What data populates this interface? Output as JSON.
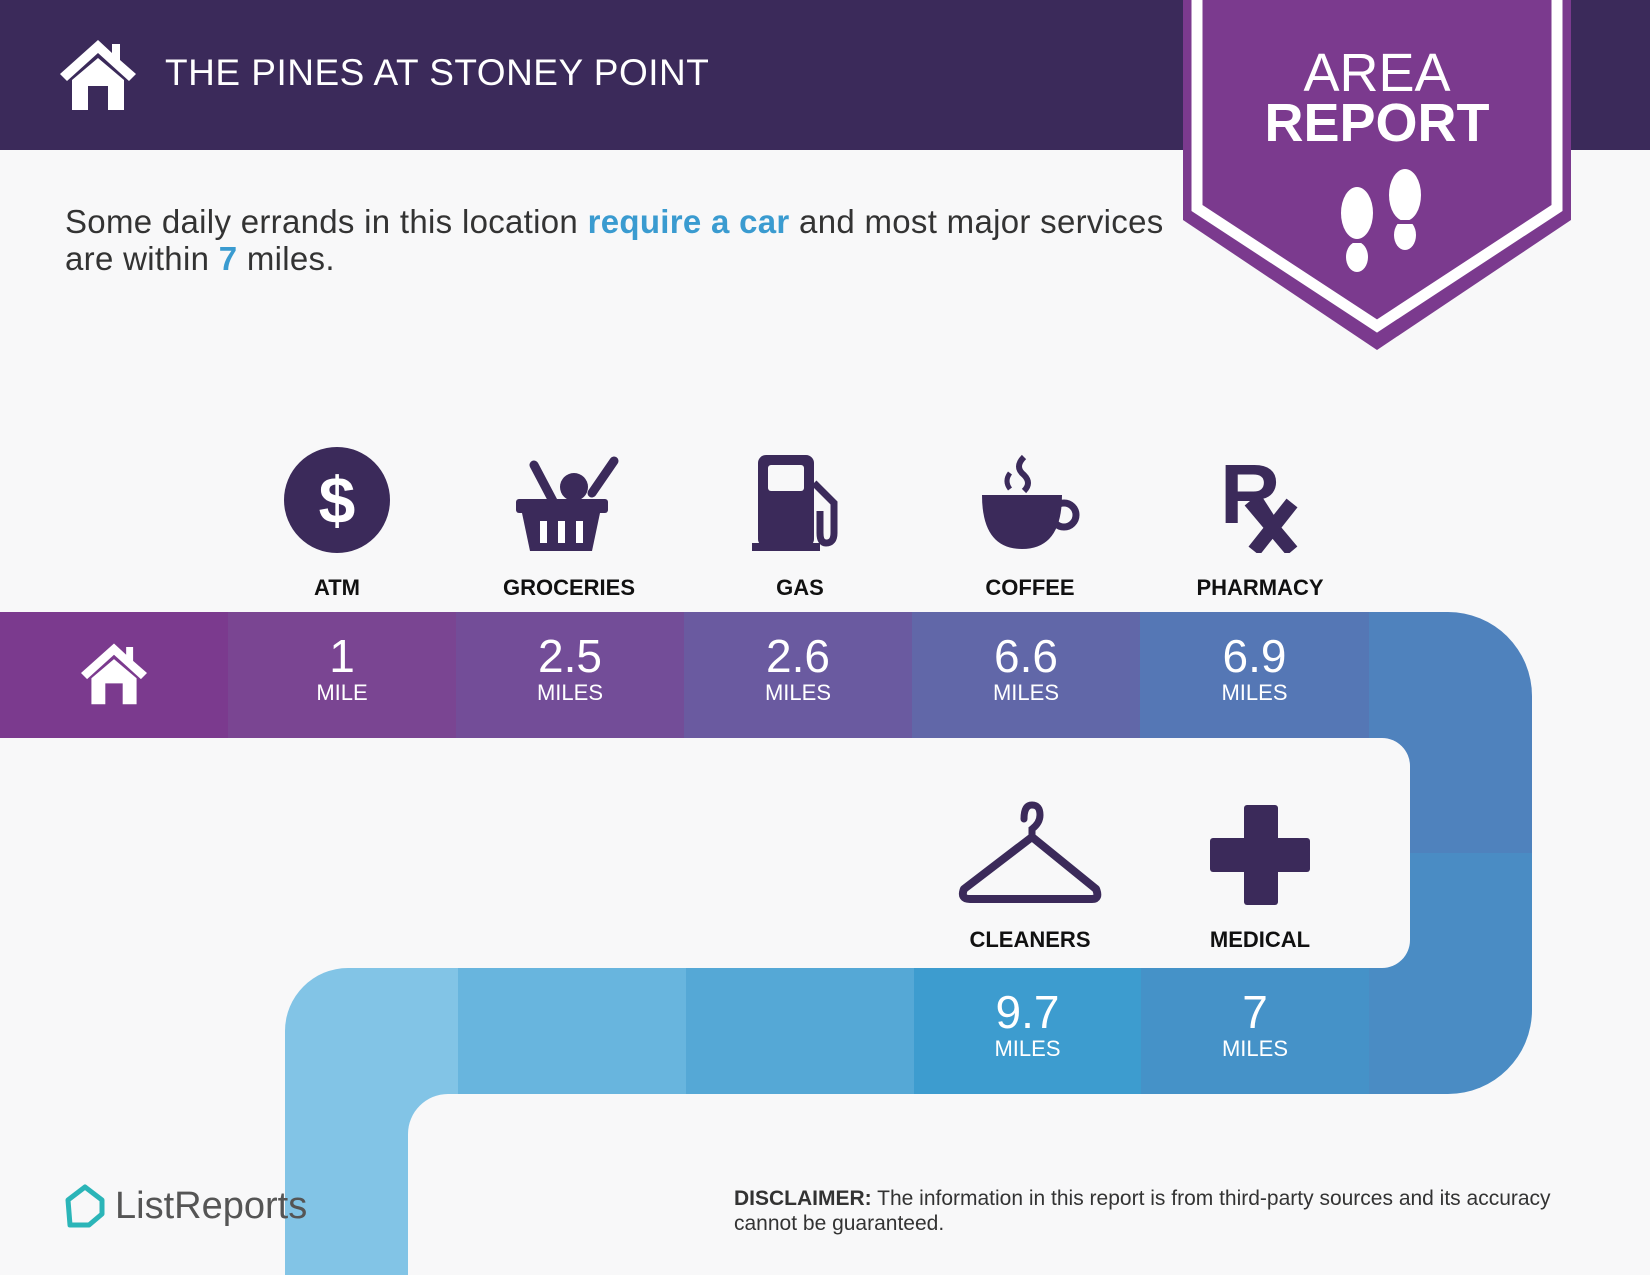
{
  "header": {
    "title": "THE PINES AT STONEY POINT",
    "home_icon": "house-icon"
  },
  "badge": {
    "line1": "AREA",
    "line2": "REPORT",
    "icon": "footprints-icon",
    "color": "#7b3a8e"
  },
  "intro": {
    "part1": "Some daily errands in this location ",
    "highlight1": "require a car",
    "part2": " and most major services are within ",
    "highlight2": "7",
    "part3": " miles.",
    "accent": "#3a9bd0"
  },
  "categories_top": [
    {
      "label": "ATM",
      "icon": "dollar-icon",
      "value": "1",
      "unit": "MILE"
    },
    {
      "label": "GROCERIES",
      "icon": "basket-icon",
      "value": "2.5",
      "unit": "MILES"
    },
    {
      "label": "GAS",
      "icon": "gas-pump-icon",
      "value": "2.6",
      "unit": "MILES"
    },
    {
      "label": "COFFEE",
      "icon": "coffee-cup-icon",
      "value": "6.6",
      "unit": "MILES"
    },
    {
      "label": "PHARMACY",
      "icon": "rx-icon",
      "value": "6.9",
      "unit": "MILES"
    }
  ],
  "categories_bottom": [
    {
      "label": "CLEANERS",
      "icon": "hanger-icon",
      "value": "9.7",
      "unit": "MILES"
    },
    {
      "label": "MEDICAL",
      "icon": "medical-cross-icon",
      "value": "7",
      "unit": "MILES"
    }
  ],
  "footer": {
    "logo": "ListReports",
    "disclaimer_label": "DISCLAIMER:",
    "disclaimer_text": " The information in this report is from third-party sources and its accuracy cannot be guaranteed."
  }
}
